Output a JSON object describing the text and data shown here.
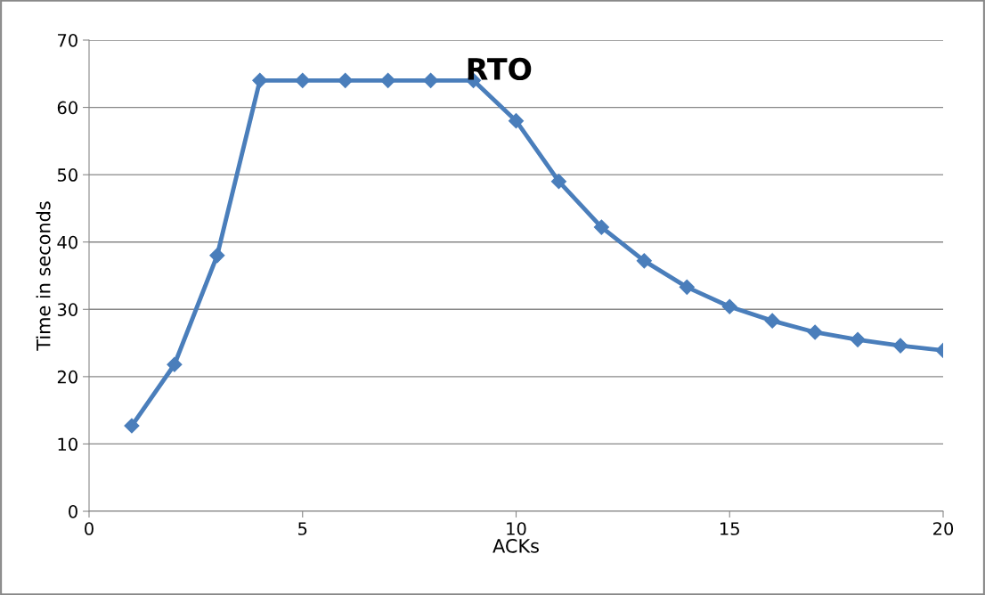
{
  "chart_data": {
    "type": "line",
    "title": "RTO",
    "xlabel": "ACKs",
    "ylabel": "Time in seconds",
    "x": [
      1,
      2,
      3,
      4,
      5,
      6,
      7,
      8,
      9,
      10,
      11,
      12,
      13,
      14,
      15,
      16,
      17,
      18,
      19,
      20
    ],
    "series": [
      {
        "color": "#4a7ebb",
        "values": [
          12.7,
          21.8,
          38,
          64,
          64,
          64,
          64,
          64,
          64,
          58,
          49,
          42.2,
          37.2,
          33.3,
          30.4,
          28.3,
          26.6,
          25.5,
          24.6,
          23.9
        ]
      }
    ],
    "xlim": [
      0,
      20
    ],
    "xticks": [
      0,
      5,
      10,
      15,
      20
    ],
    "ylim": [
      0,
      70
    ],
    "yticks": [
      0,
      10,
      20,
      30,
      40,
      50,
      60,
      70
    ],
    "grid": "y",
    "marker": "diamond",
    "line_style": "solid",
    "legend": false
  }
}
